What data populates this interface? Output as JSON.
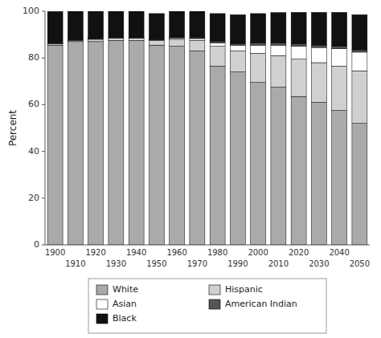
{
  "chart_data": {
    "type": "bar",
    "stacked": true,
    "ylabel": "Percent",
    "categories": [
      "1900",
      "1910",
      "1920",
      "1930",
      "1940",
      "1950",
      "1960",
      "1970",
      "1980",
      "1990",
      "2000",
      "2010",
      "2020",
      "2030",
      "2040",
      "2050"
    ],
    "series": [
      {
        "name": "White",
        "color": "#aaaaaa",
        "values": [
          85.5,
          87.0,
          87.0,
          87.5,
          87.5,
          85.5,
          85.0,
          83.0,
          76.5,
          74.0,
          69.5,
          67.5,
          63.5,
          61.0,
          57.5,
          52.0
        ]
      },
      {
        "name": "Hispanic",
        "color": "#d0d0d0",
        "values": [
          0.5,
          0.5,
          1.0,
          1.0,
          1.0,
          2.0,
          3.0,
          4.5,
          8.5,
          9.0,
          12.5,
          13.5,
          16.0,
          17.0,
          19.0,
          22.5
        ]
      },
      {
        "name": "Asian",
        "color": "#ffffff",
        "values": [
          0.1,
          0.1,
          0.1,
          0.1,
          0.1,
          0.2,
          0.5,
          0.8,
          1.5,
          2.5,
          3.5,
          4.5,
          5.5,
          6.5,
          7.5,
          8.0
        ]
      },
      {
        "name": "American Indian",
        "color": "#555555",
        "values": [
          0.3,
          0.3,
          0.3,
          0.3,
          0.3,
          0.3,
          0.5,
          0.5,
          0.7,
          0.7,
          0.9,
          0.9,
          1.0,
          1.0,
          1.0,
          1.0
        ]
      },
      {
        "name": "Black",
        "color": "#111111",
        "values": [
          13.5,
          12.1,
          11.6,
          11.1,
          11.1,
          11.0,
          11.0,
          11.2,
          11.8,
          12.3,
          12.6,
          13.0,
          13.5,
          14.0,
          14.5,
          15.0
        ]
      }
    ],
    "ylim": [
      0,
      100
    ],
    "yticks": [
      0,
      20,
      40,
      60,
      80,
      100
    ],
    "grid": false,
    "legend": "bottom"
  }
}
